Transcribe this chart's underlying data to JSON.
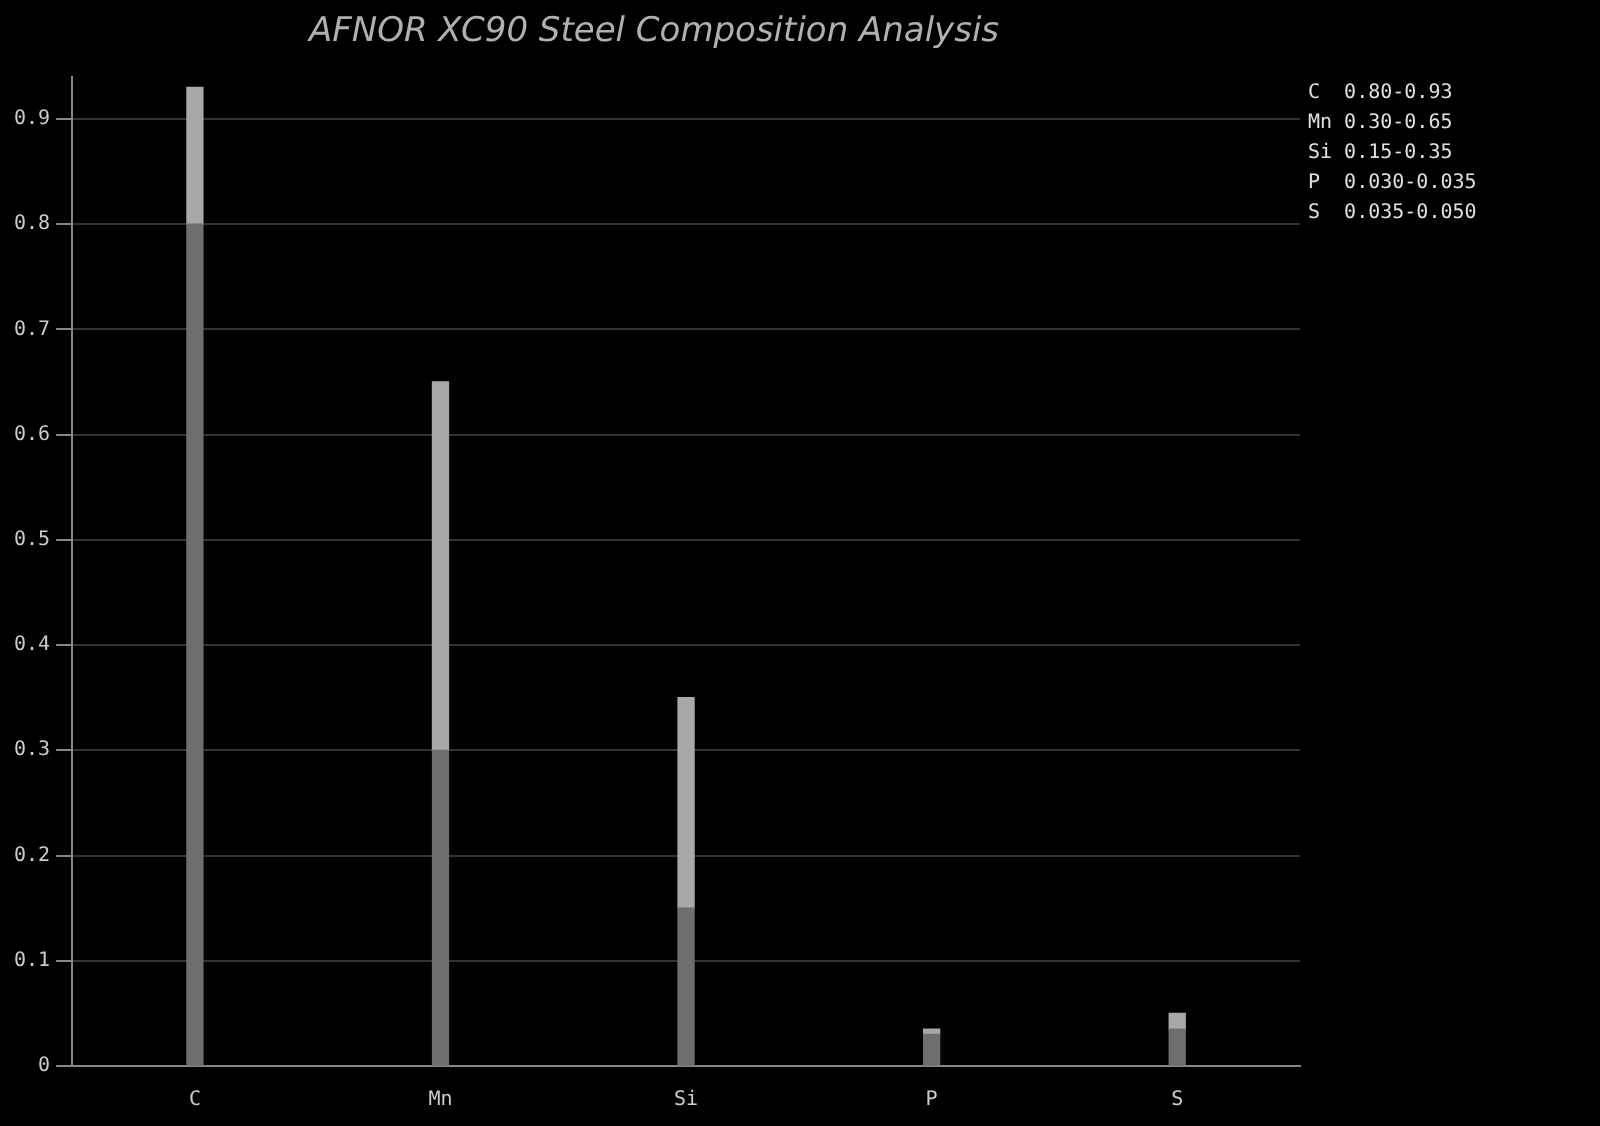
{
  "chart_data": {
    "type": "bar",
    "title": "AFNOR XC90 Steel Composition Analysis",
    "categories": [
      "C",
      "Mn",
      "Si",
      "P",
      "S"
    ],
    "stacked": true,
    "series": [
      {
        "color": "#6e6e6e",
        "values": [
          0.8,
          0.3,
          0.15,
          0.03,
          0.035
        ]
      },
      {
        "color": "#a8a8a8",
        "values": [
          0.13,
          0.35,
          0.2,
          0.005,
          0.015
        ]
      }
    ],
    "ylim": [
      0,
      0.94
    ],
    "yticks": [
      0,
      0.1,
      0.2,
      0.3,
      0.4,
      0.5,
      0.6,
      0.7,
      0.8,
      0.9
    ],
    "grid": "y",
    "legend": false,
    "annotations": [
      "C  0.80-0.93",
      "Mn 0.30-0.65",
      "Si 0.15-0.35",
      "P  0.030-0.035",
      "S  0.035-0.050"
    ]
  }
}
